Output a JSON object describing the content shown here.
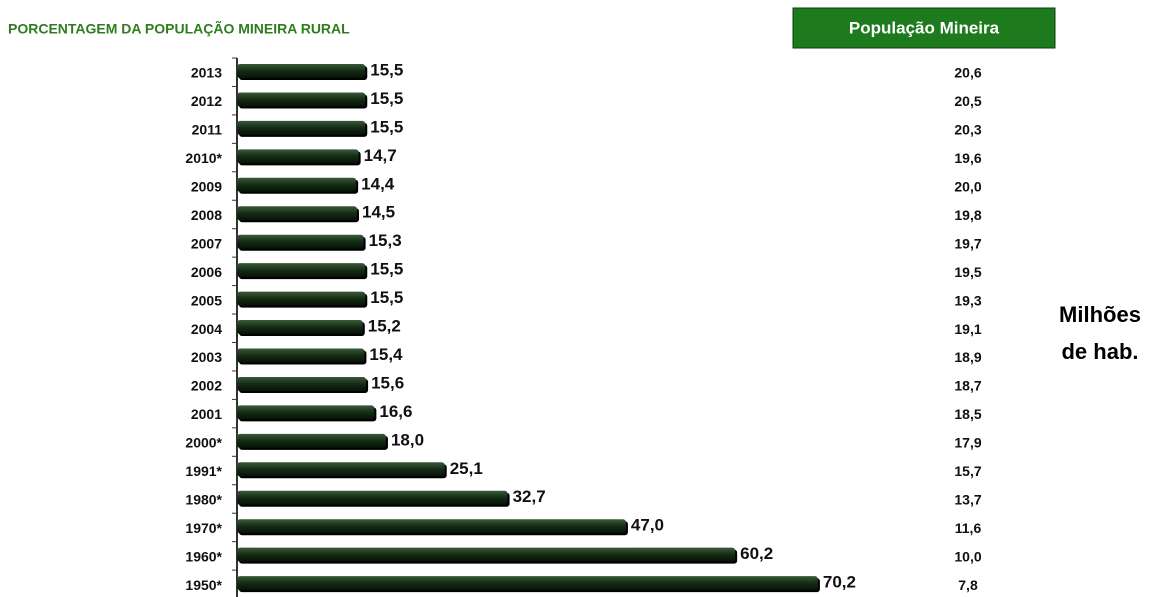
{
  "chart_data": {
    "type": "hbar",
    "title": "PORCENTAGEM DA POPULAÇÃO MINEIRA RURAL",
    "categories": [
      "2013",
      "2012",
      "2011",
      "2010*",
      "2009",
      "2008",
      "2007",
      "2006",
      "2005",
      "2004",
      "2003",
      "2002",
      "2001",
      "2000*",
      "1991*",
      "1980*",
      "1970*",
      "1960*",
      "1950*"
    ],
    "values": [
      15.5,
      15.5,
      15.5,
      14.7,
      14.4,
      14.5,
      15.3,
      15.5,
      15.5,
      15.2,
      15.4,
      15.6,
      16.6,
      18.0,
      25.1,
      32.7,
      47.0,
      60.2,
      70.2
    ],
    "value_labels": [
      "15,5",
      "15,5",
      "15,5",
      "14,7",
      "14,4",
      "14,5",
      "15,3",
      "15,5",
      "15,5",
      "15,2",
      "15,4",
      "15,6",
      "16,6",
      "18,0",
      "25,1",
      "32,7",
      "47,0",
      "60,2",
      "70,2"
    ],
    "color": "#142b14",
    "xlim": [
      0,
      80
    ],
    "population": {
      "title": "População Mineira",
      "values": [
        20.6,
        20.5,
        20.3,
        19.6,
        20.0,
        19.8,
        19.7,
        19.5,
        19.3,
        19.1,
        18.9,
        18.7,
        18.5,
        17.9,
        15.7,
        13.7,
        11.6,
        10.0,
        7.8
      ],
      "value_labels": [
        "20,6",
        "20,5",
        "20,3",
        "19,6",
        "20,0",
        "19,8",
        "19,7",
        "19,5",
        "19,3",
        "19,1",
        "18,9",
        "18,7",
        "18,5",
        "17,9",
        "15,7",
        "13,7",
        "11,6",
        "10,0",
        "7,8"
      ],
      "unit_label": [
        "Milhões",
        "de hab."
      ]
    }
  }
}
